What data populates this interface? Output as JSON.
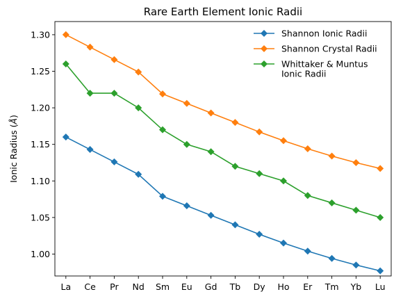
{
  "chart_data": {
    "type": "line",
    "title": "Rare Earth Element Ionic Radii",
    "xlabel": "",
    "ylabel": "Ionic Radius (Å)",
    "ylabel_parts": {
      "prefix": "Ionic Radius (",
      "unit": "Å",
      "suffix": ")"
    },
    "categories": [
      "La",
      "Ce",
      "Pr",
      "Nd",
      "Sm",
      "Eu",
      "Gd",
      "Tb",
      "Dy",
      "Ho",
      "Er",
      "Tm",
      "Yb",
      "Lu"
    ],
    "ylim": [
      0.97,
      1.318
    ],
    "yticks": [
      1.0,
      1.05,
      1.1,
      1.15,
      1.2,
      1.25,
      1.3
    ],
    "ytick_labels": [
      "1.00",
      "1.05",
      "1.10",
      "1.15",
      "1.20",
      "1.25",
      "1.30"
    ],
    "grid": false,
    "legend_position": "top-right",
    "series": [
      {
        "name": "Shannon Ionic Radii",
        "color": "#1f77b4",
        "marker": "diamond",
        "values": [
          1.16,
          1.143,
          1.126,
          1.109,
          1.079,
          1.066,
          1.053,
          1.04,
          1.027,
          1.015,
          1.004,
          0.994,
          0.985,
          0.977
        ]
      },
      {
        "name": "Shannon Crystal Radii",
        "color": "#ff7f0e",
        "marker": "diamond",
        "values": [
          1.3,
          1.283,
          1.266,
          1.249,
          1.219,
          1.206,
          1.193,
          1.18,
          1.167,
          1.155,
          1.144,
          1.134,
          1.125,
          1.117
        ]
      },
      {
        "name": "Whittaker & Muntus Ionic Radii",
        "legend_lines": [
          "Whittaker & Muntus",
          "Ionic Radii"
        ],
        "color": "#2ca02c",
        "marker": "diamond",
        "values": [
          1.26,
          1.22,
          1.22,
          1.2,
          1.17,
          1.15,
          1.14,
          1.12,
          1.11,
          1.1,
          1.08,
          1.07,
          1.06,
          1.05
        ]
      }
    ]
  }
}
